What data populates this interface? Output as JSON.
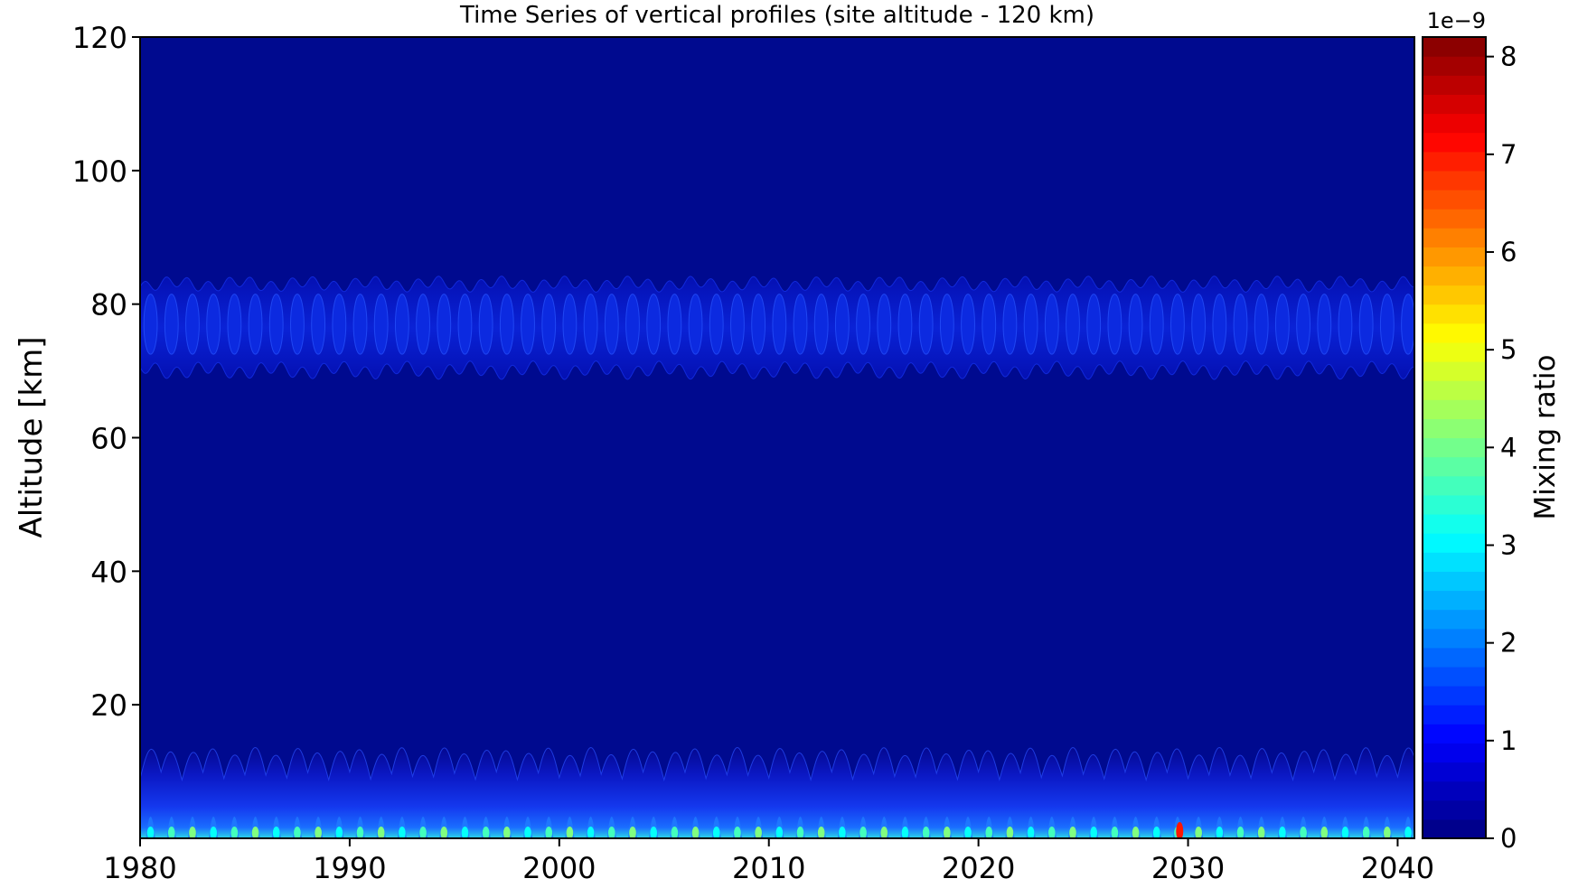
{
  "chart_data": {
    "type": "heatmap",
    "title": "Time Series of vertical profiles (site altitude - 120 km)",
    "xlabel": "",
    "ylabel": "Altitude [km]",
    "xlim": [
      1980,
      2040.8
    ],
    "ylim": [
      0,
      120
    ],
    "x_ticks": [
      "1980",
      "1990",
      "2000",
      "2010",
      "2020",
      "2030",
      "2040"
    ],
    "y_ticks": [
      "20",
      "40",
      "60",
      "80",
      "100",
      "120"
    ],
    "colorbar": {
      "label": "Mixing ratio",
      "multiplier": "1e−9",
      "min": 0,
      "max": 8.2,
      "ticks": [
        "0",
        "1",
        "2",
        "3",
        "4",
        "5",
        "6",
        "7",
        "8"
      ],
      "colormap": "jet"
    },
    "background_value": 0.0,
    "features": [
      {
        "name": "mesospheric band",
        "center_km": 77,
        "half_width_km": 6,
        "peak_value": 0.25,
        "cycle_years": 1
      },
      {
        "name": "surface layer",
        "top_km": 13,
        "peak_value": 2.8,
        "cycle_years": 1
      }
    ],
    "peak_events": [
      {
        "year": 2029.6,
        "value": 7.0
      }
    ]
  }
}
